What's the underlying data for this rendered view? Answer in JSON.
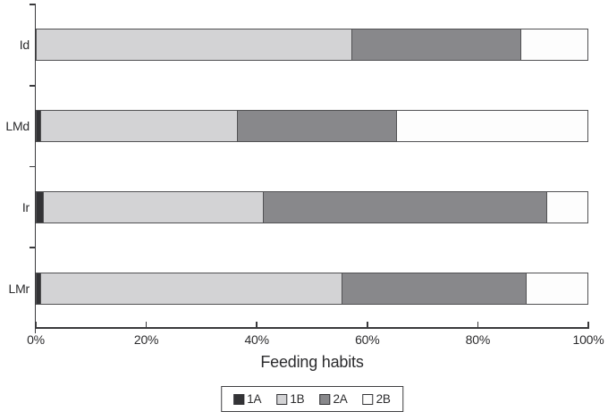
{
  "chart_data": {
    "type": "bar",
    "orientation": "horizontal",
    "stacked": true,
    "title": "",
    "xlabel": "Feeding habits",
    "ylabel": "",
    "xlim": [
      0,
      100
    ],
    "x_ticks": [
      0,
      20,
      40,
      60,
      80,
      100
    ],
    "x_tick_labels": [
      "0%",
      "20%",
      "40%",
      "60%",
      "80%",
      "100%"
    ],
    "categories": [
      "Id",
      "LMd",
      "Ir",
      "LMr"
    ],
    "series": [
      {
        "name": "1A",
        "color": "#333336",
        "values": [
          0,
          0.7,
          1.1,
          0.7
        ]
      },
      {
        "name": "1B",
        "color": "#d3d3d5",
        "values": [
          57.1,
          35.7,
          39.9,
          54.6
        ]
      },
      {
        "name": "2A",
        "color": "#88888b",
        "values": [
          30.8,
          28.8,
          51.6,
          33.5
        ]
      },
      {
        "name": "2B",
        "color": "#fdfdfd",
        "values": [
          12.1,
          34.8,
          7.4,
          11.2
        ]
      }
    ],
    "legend_position": "bottom",
    "legend_labels": [
      "1A",
      "1B",
      "2A",
      "2B"
    ],
    "grid": false
  },
  "colors": {
    "axis": "#3a3a3c",
    "segment_border": "#515153",
    "text": "#2b2b2d"
  }
}
